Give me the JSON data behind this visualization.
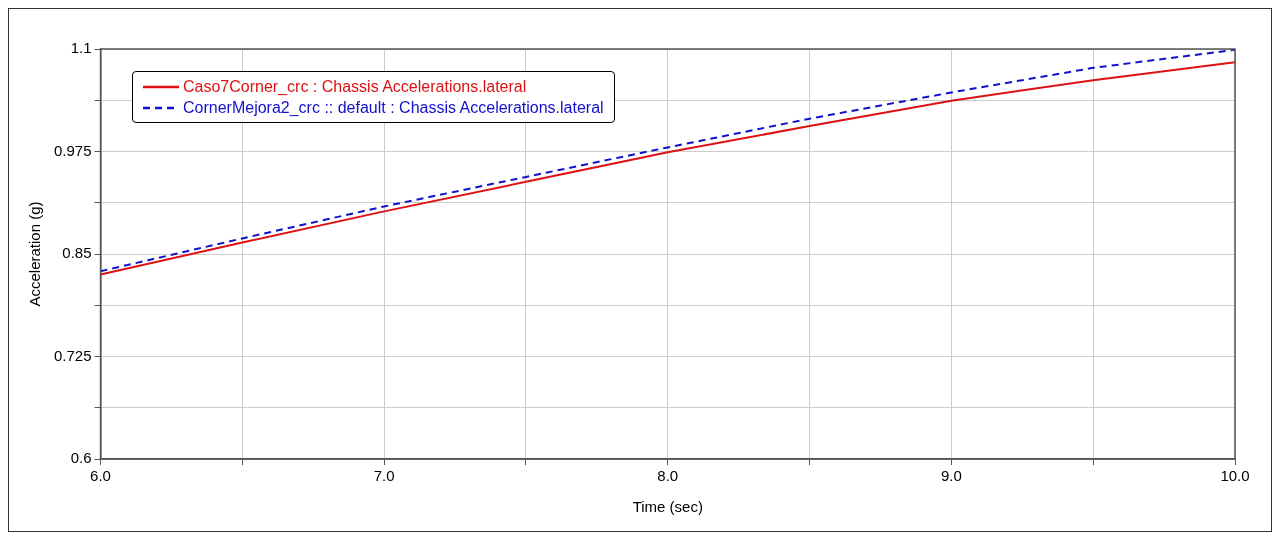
{
  "chart_data": {
    "type": "line",
    "xlabel": "Time (sec)",
    "ylabel": "Acceleration (g)",
    "x": [
      6.0,
      6.5,
      7.0,
      7.5,
      8.0,
      8.5,
      9.0,
      9.5,
      10.0
    ],
    "series": [
      {
        "name": "Caso7Corner_crc : Chassis Accelerations.lateral",
        "color": "#dd1111",
        "line_style": "solid",
        "values": [
          0.825,
          0.864,
          0.902,
          0.938,
          0.974,
          1.006,
          1.037,
          1.062,
          1.084
        ]
      },
      {
        "name": "CornerMejora2_crc :: default : Chassis Accelerations.lateral",
        "color": "#1111cc",
        "line_style": "dashed",
        "values": [
          0.829,
          0.869,
          0.908,
          0.944,
          0.98,
          1.015,
          1.047,
          1.077,
          1.099
        ]
      }
    ],
    "xlim": [
      6.0,
      10.0
    ],
    "xticks": [
      {
        "value": 6.0,
        "label": "6.0"
      },
      {
        "value": 6.5,
        "label": null
      },
      {
        "value": 7.0,
        "label": "7.0"
      },
      {
        "value": 7.5,
        "label": null
      },
      {
        "value": 8.0,
        "label": "8.0"
      },
      {
        "value": 8.5,
        "label": null
      },
      {
        "value": 9.0,
        "label": "9.0"
      },
      {
        "value": 9.5,
        "label": null
      },
      {
        "value": 10.0,
        "label": "10.0"
      }
    ],
    "ylim": [
      0.6,
      1.1
    ],
    "yticks": [
      0.6,
      {
        "value": 0.6625,
        "label": null
      },
      0.725,
      {
        "value": 0.7875,
        "label": null
      },
      0.85,
      {
        "value": 0.9125,
        "label": null
      },
      0.975,
      {
        "value": 1.0375,
        "label": null
      },
      1.1
    ],
    "grid": true,
    "legend": "top left",
    "marker": "none"
  }
}
